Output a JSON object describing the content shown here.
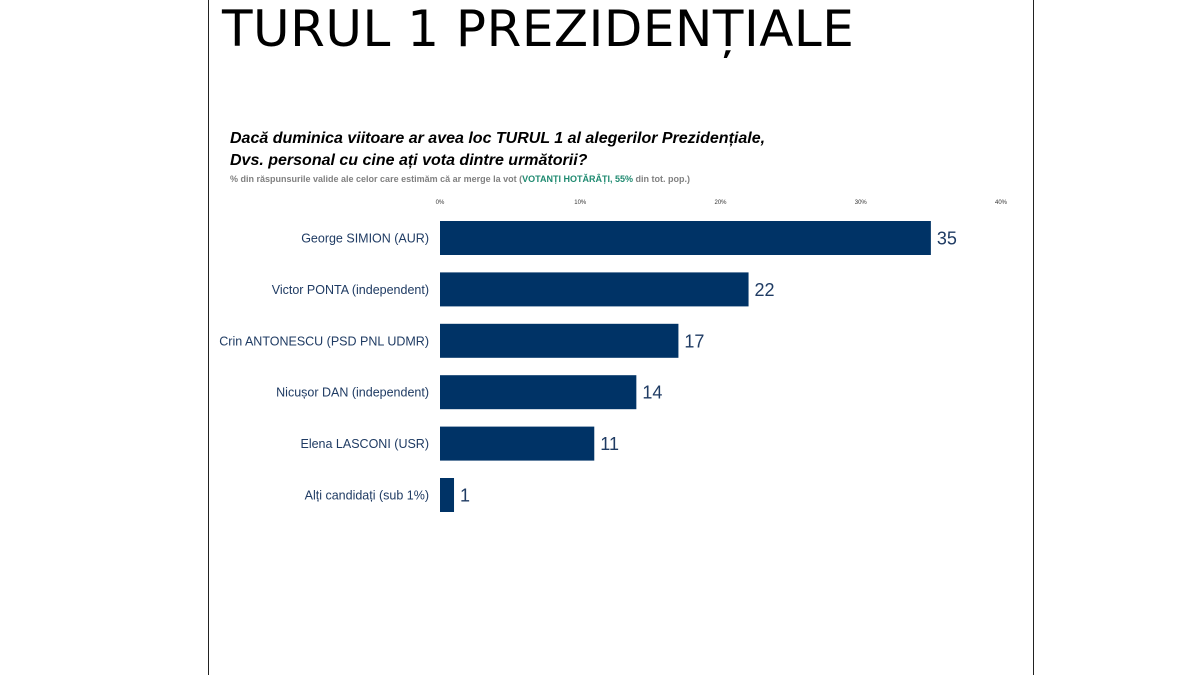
{
  "page": {
    "title": "TURUL 1 PREZIDENȚIALE",
    "question_line1": "Dacă duminica viitoare ar avea loc TURUL 1 al alegerilor Prezidențiale,",
    "question_line2": "Dvs. personal cu cine ați vota dintre următorii?",
    "note_prefix": "% din răspunsurile valide ale celor care estimăm că ar merge la vot (",
    "note_highlight": "VOTANȚI HOTĂRÂȚI, 55%",
    "note_suffix": " din tot. pop.)"
  },
  "colors": {
    "bar": "#003366",
    "label": "#1f3b63",
    "highlight": "#1f8a70"
  },
  "chart_data": {
    "type": "bar",
    "orientation": "horizontal",
    "categories": [
      "George SIMION (AUR)",
      "Victor PONTA (independent)",
      "Crin ANTONESCU (PSD PNL UDMR)",
      "Nicușor DAN (independent)",
      "Elena LASCONI (USR)",
      "Alți candidați (sub 1%)"
    ],
    "values": [
      35,
      22,
      17,
      14,
      11,
      1
    ],
    "xlim": [
      0,
      40
    ],
    "xticks": [
      0,
      10,
      20,
      30,
      40
    ],
    "xtick_labels": [
      "0%",
      "10%",
      "20%",
      "30%",
      "40%"
    ],
    "grid": false,
    "title": "",
    "xlabel": "",
    "ylabel": ""
  }
}
